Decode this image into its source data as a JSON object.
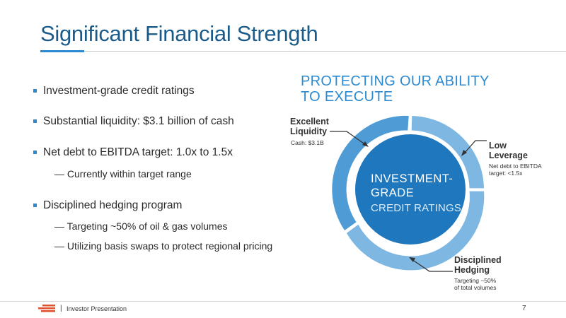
{
  "slide": {
    "title": "Significant Financial Strength",
    "bullets": [
      {
        "text": "Investment-grade credit ratings"
      },
      {
        "text": "Substantial liquidity: $3.1 billion of cash"
      },
      {
        "text": "Net debt to EBITDA target: 1.0x to 1.5x"
      },
      {
        "text": "Disciplined hedging program"
      }
    ],
    "subbullets": [
      "— Currently within target range",
      "— Targeting ~50% of oil & gas volumes",
      "— Utilizing basis swaps to protect regional pricing"
    ]
  },
  "graphic": {
    "heading_line1": "PROTECTING OUR ABILITY",
    "heading_line2": "TO EXECUTE",
    "center_line1": "INVESTMENT-",
    "center_line2": "GRADE",
    "center_line3": "CREDIT RATINGS",
    "labels": {
      "liquidity": {
        "title1": "Excellent",
        "title2": "Liquidity",
        "detail": "Cash: $3.1B"
      },
      "leverage": {
        "title1": "Low",
        "title2": "Leverage",
        "detail1": "Net debt to EBITDA",
        "detail2": "target: <1.5x"
      },
      "hedging": {
        "title1": "Disciplined",
        "title2": "Hedging",
        "detail1": "Targeting ~50%",
        "detail2": "of total volumes"
      }
    },
    "colors": {
      "dark_blue": "#1f77bd",
      "mid_blue": "#4e9bd6",
      "light_blue": "#7fb7e3",
      "accent": "#2c8ad1"
    }
  },
  "footer": {
    "label": "Investor Presentation",
    "page": "7"
  }
}
